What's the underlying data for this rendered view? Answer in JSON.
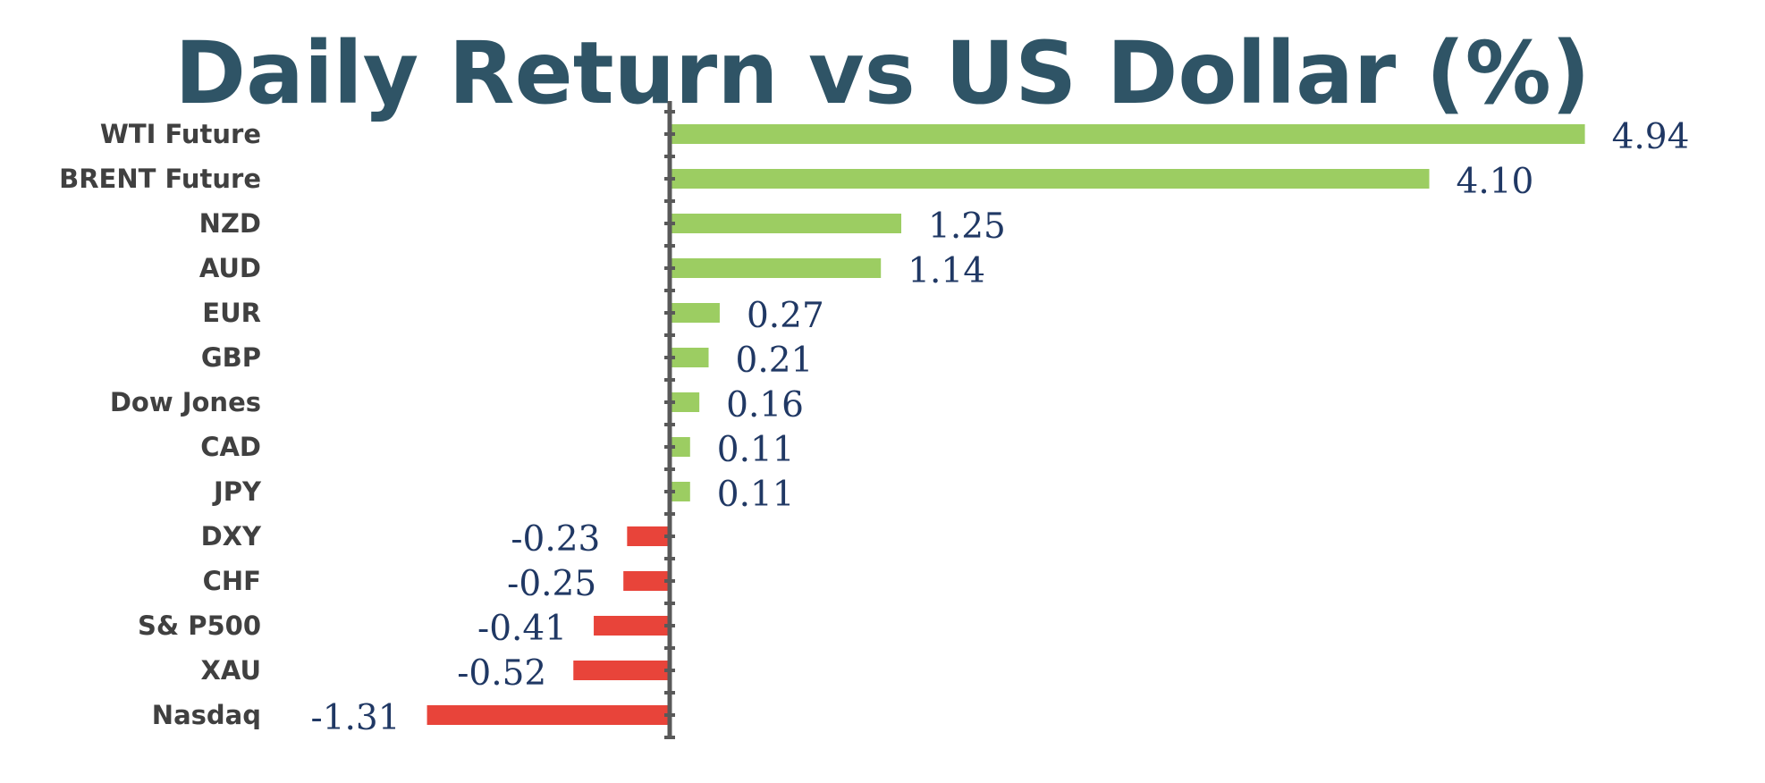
{
  "chart_data": {
    "type": "bar",
    "orientation": "horizontal",
    "title": "Daily Return vs US Dollar (%)",
    "xlabel": "",
    "ylabel": "",
    "categories": [
      "WTI Future",
      "BRENT Future",
      "NZD",
      "AUD",
      "EUR",
      "GBP",
      "Dow Jones",
      "CAD",
      "JPY",
      "DXY",
      "CHF",
      "S& P500",
      "XAU",
      "Nasdaq"
    ],
    "values": [
      4.94,
      4.1,
      1.25,
      1.14,
      0.27,
      0.21,
      0.16,
      0.11,
      0.11,
      -0.23,
      -0.25,
      -0.41,
      -0.52,
      -1.31
    ],
    "data_labels": [
      "4.94",
      "4.10",
      "1.25",
      "1.14",
      "0.27",
      "0.21",
      "0.16",
      "0.11",
      "0.11",
      "-0.23",
      "-0.25",
      "-0.41",
      "-0.52",
      "-1.31"
    ],
    "xlim": [
      -1.31,
      4.94
    ],
    "grid": false,
    "legend": "none",
    "colors": {
      "positive": "#9ccd62",
      "negative": "#e8443a",
      "title": "#2f5466",
      "category_label": "#404040",
      "value_label": "#203864",
      "axis": "#595959"
    }
  }
}
